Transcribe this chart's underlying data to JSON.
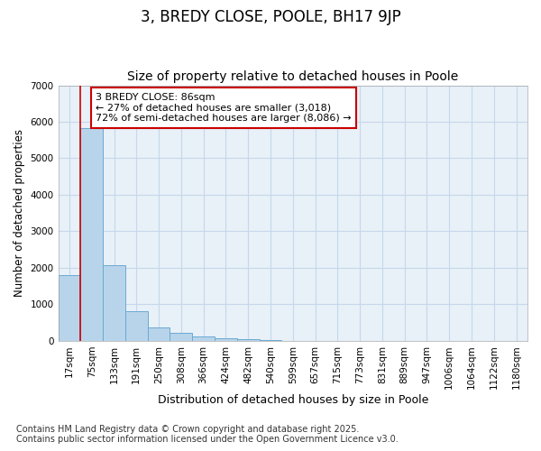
{
  "title1": "3, BREDY CLOSE, POOLE, BH17 9JP",
  "title2": "Size of property relative to detached houses in Poole",
  "xlabel": "Distribution of detached houses by size in Poole",
  "ylabel": "Number of detached properties",
  "bar_labels": [
    "17sqm",
    "75sqm",
    "133sqm",
    "191sqm",
    "250sqm",
    "308sqm",
    "366sqm",
    "424sqm",
    "482sqm",
    "540sqm",
    "599sqm",
    "657sqm",
    "715sqm",
    "773sqm",
    "831sqm",
    "889sqm",
    "947sqm",
    "1006sqm",
    "1064sqm",
    "1122sqm",
    "1180sqm"
  ],
  "bar_values": [
    1800,
    5820,
    2080,
    820,
    360,
    210,
    120,
    80,
    55,
    30,
    0,
    0,
    0,
    0,
    0,
    0,
    0,
    0,
    0,
    0,
    0
  ],
  "bar_color": "#b8d4ea",
  "bar_edge_color": "#6aaad4",
  "vline_x": 0.5,
  "vline_color": "#cc0000",
  "ylim": [
    0,
    7000
  ],
  "yticks": [
    0,
    1000,
    2000,
    3000,
    4000,
    5000,
    6000,
    7000
  ],
  "annotation_title": "3 BREDY CLOSE: 86sqm",
  "annotation_line1": "← 27% of detached houses are smaller (3,018)",
  "annotation_line2": "72% of semi-detached houses are larger (8,086) →",
  "annotation_box_color": "#cc0000",
  "grid_color": "#c5d8ea",
  "bg_color": "#e8f0f8",
  "footnote1": "Contains HM Land Registry data © Crown copyright and database right 2025.",
  "footnote2": "Contains public sector information licensed under the Open Government Licence v3.0.",
  "title1_fontsize": 12,
  "title2_fontsize": 10,
  "xlabel_fontsize": 9,
  "ylabel_fontsize": 8.5,
  "tick_fontsize": 7.5,
  "annotation_fontsize": 8,
  "footnote_fontsize": 7
}
